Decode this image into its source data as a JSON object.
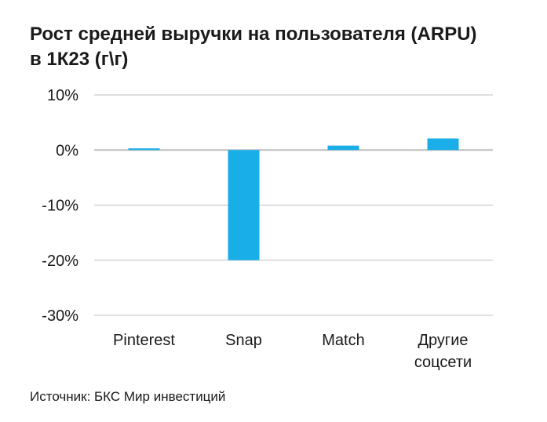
{
  "title": {
    "line1": "Рост средней выручки на пользователя (ARPU)",
    "line2": "в 1К23 (г\\г)"
  },
  "source": "Источник: БКС Мир инвестиций",
  "colors": {
    "bar": "#1aaee8",
    "grid": "#cccccc",
    "zero_line": "#bdbdbd"
  },
  "chart_data": {
    "type": "bar",
    "categories": [
      "Pinterest",
      "Snap",
      "Match",
      "Другие соцсети"
    ],
    "category_lines": [
      [
        "Pinterest"
      ],
      [
        "Snap"
      ],
      [
        "Match"
      ],
      [
        "Другие",
        "соцсети"
      ]
    ],
    "values": [
      0.3,
      -20.0,
      0.8,
      2.1
    ],
    "y_ticks": [
      10,
      0,
      -10,
      -20,
      -30
    ],
    "y_tick_labels": [
      "10%",
      "0%",
      "-10%",
      "-20%",
      "-30%"
    ],
    "ylim": [
      -30,
      10
    ],
    "grid": true,
    "xlabel": "",
    "ylabel": ""
  }
}
